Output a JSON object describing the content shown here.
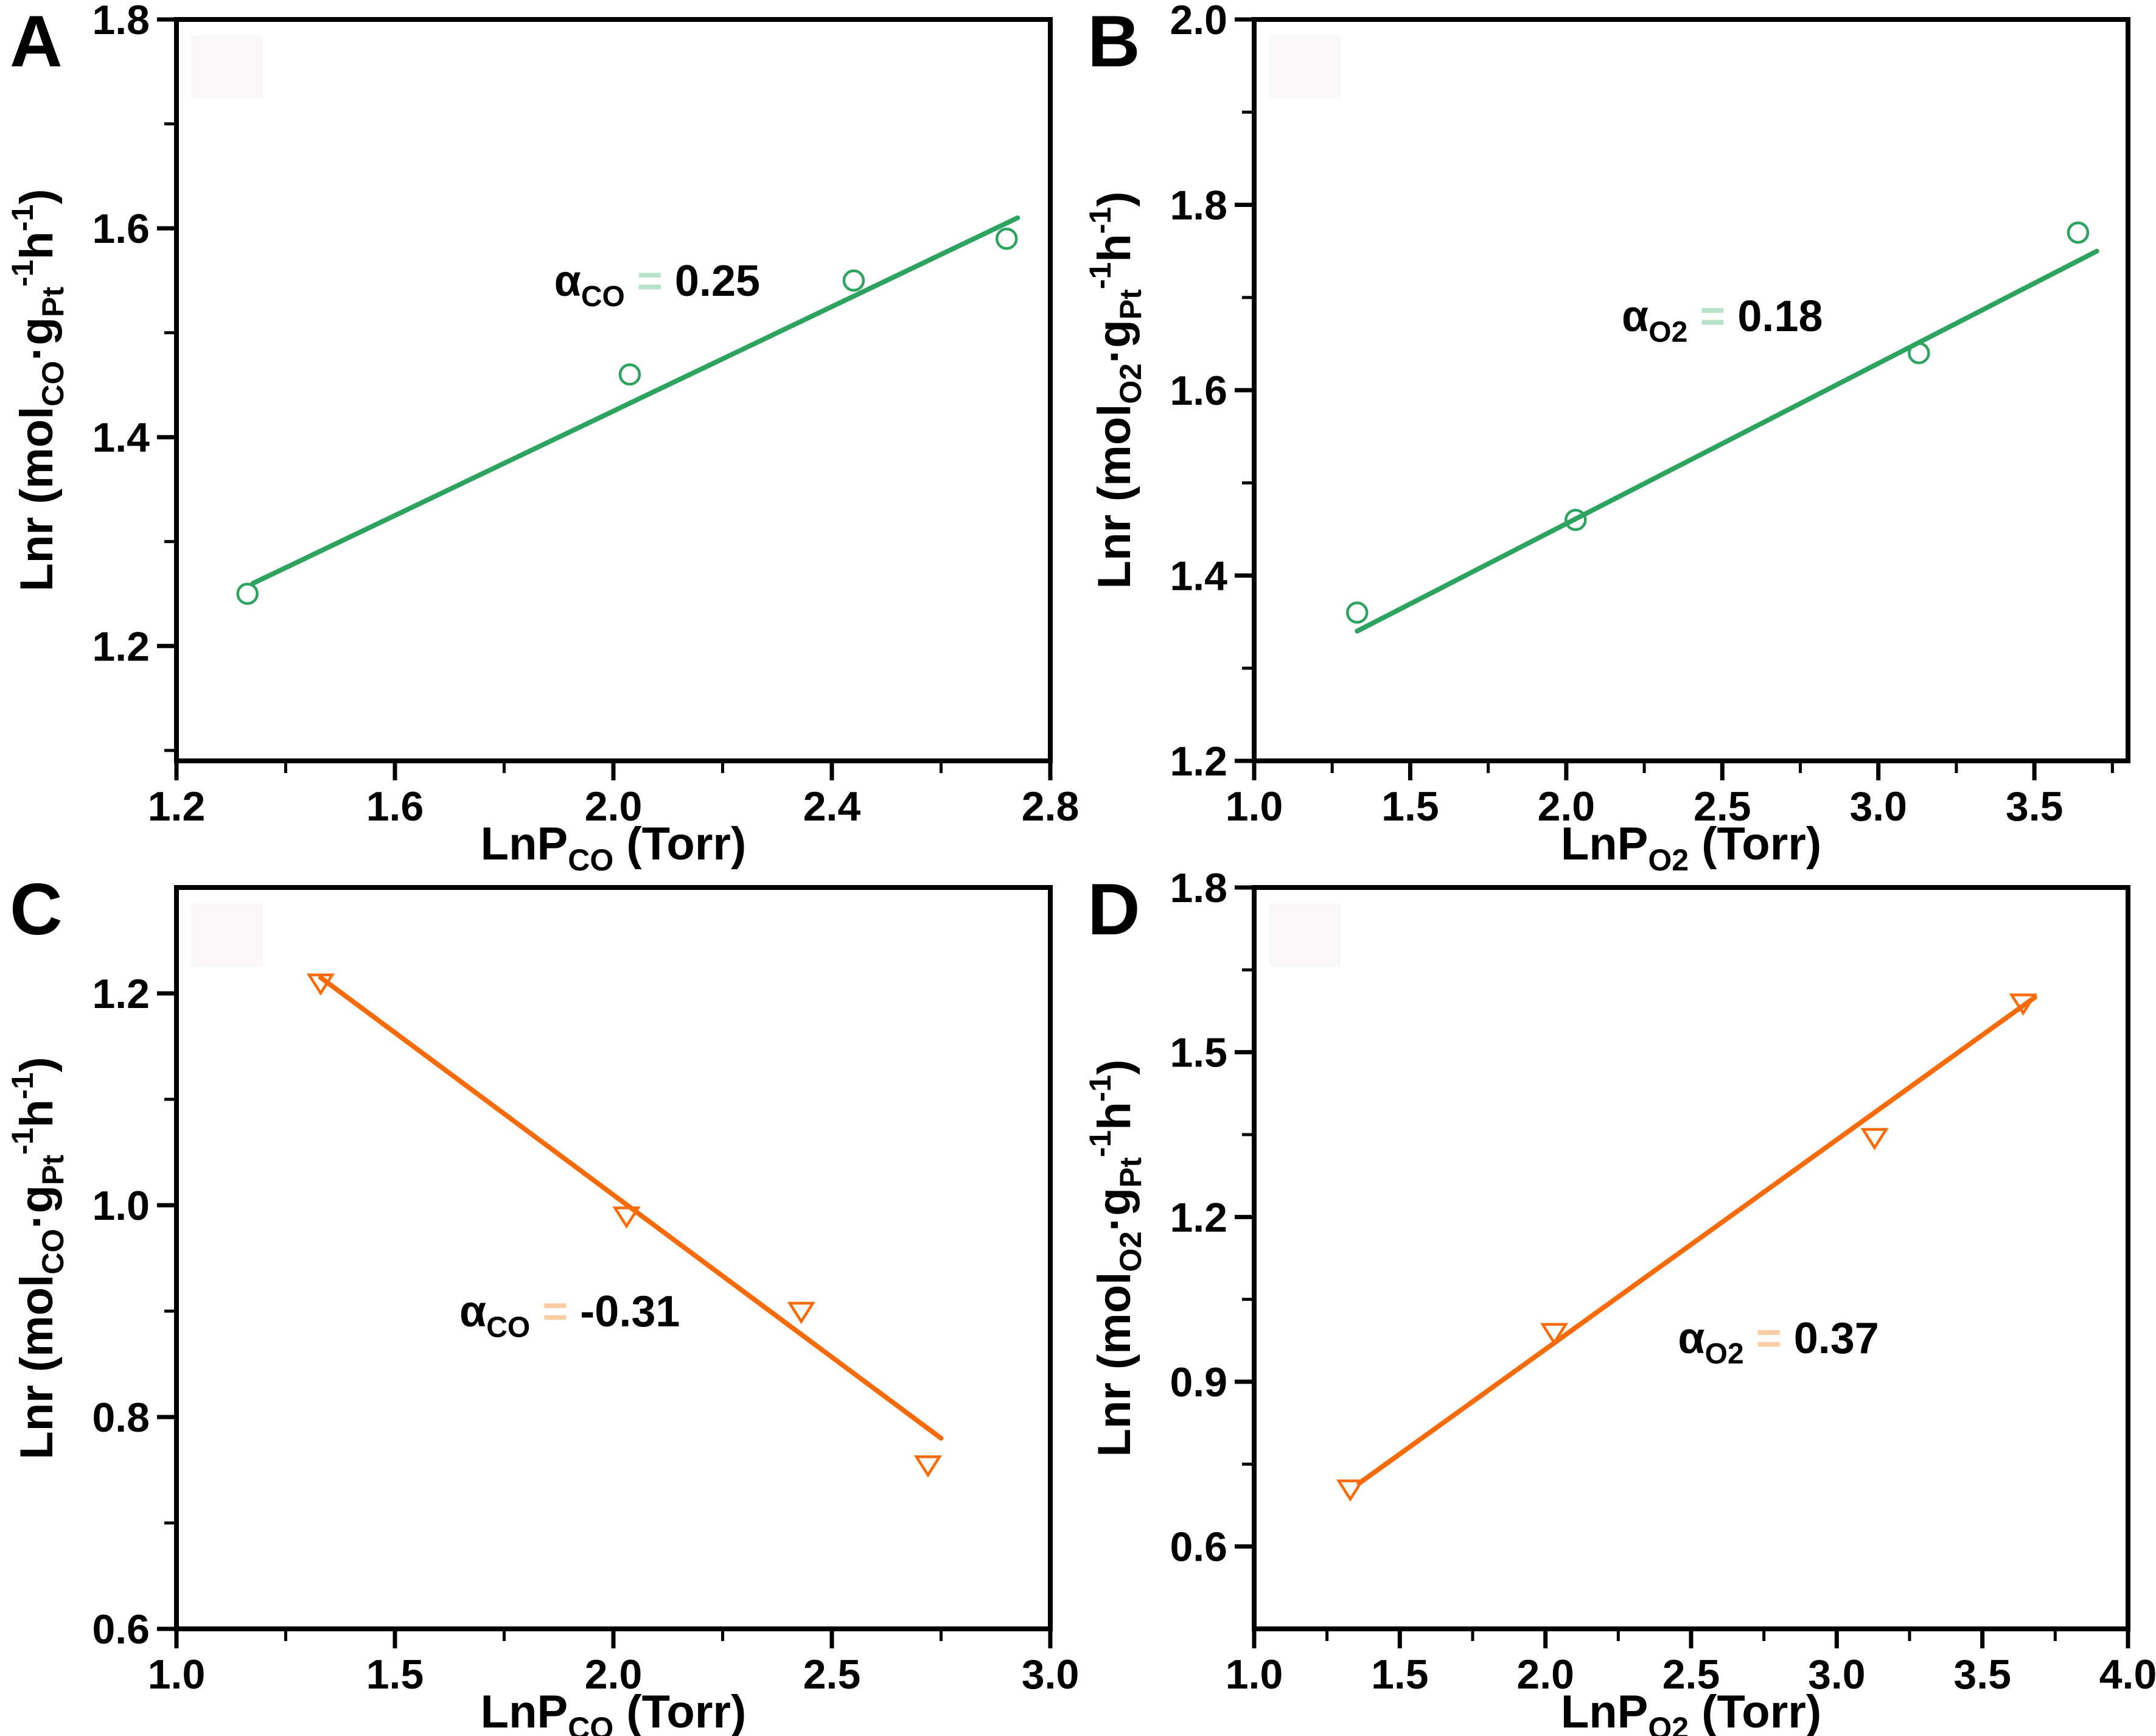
{
  "style": {
    "background": "#ffffff",
    "frame_color": "#000000",
    "watermark_color": "#faf7f8",
    "green": "#2ca35f",
    "orange": "#f96a08"
  },
  "chart_data": [
    {
      "panel": "A",
      "type": "scatter",
      "color": "#2ca35f",
      "pale_color": "#b9e2ca",
      "marker": "circle",
      "xlabel_parts": [
        {
          "t": "LnP"
        },
        {
          "t": "CO",
          "sub": true
        },
        {
          "t": " (Torr)"
        }
      ],
      "ylabel_parts": [
        {
          "t": "Lnr (mol"
        },
        {
          "t": "CO",
          "sub": true
        },
        {
          "t": "·g"
        },
        {
          "t": "Pt",
          "sub": true
        },
        {
          "t": "-1",
          "sup": true
        },
        {
          "t": "h"
        },
        {
          "t": "-1",
          "sup": true
        },
        {
          "t": ")"
        }
      ],
      "xlim": [
        1.2,
        2.8
      ],
      "ylim": [
        1.09,
        1.8
      ],
      "xticks": [
        1.2,
        1.6,
        2.0,
        2.4,
        2.8
      ],
      "xminor": [
        1.4,
        1.8,
        2.2,
        2.6
      ],
      "yticks": [
        1.2,
        1.4,
        1.6,
        1.8
      ],
      "yminor": [
        1.1,
        1.3,
        1.5,
        1.7
      ],
      "points": [
        [
          1.33,
          1.25
        ],
        [
          2.03,
          1.46
        ],
        [
          2.44,
          1.55
        ],
        [
          2.72,
          1.59
        ]
      ],
      "fit_line": {
        "x1": 1.34,
        "y1": 1.26,
        "x2": 2.74,
        "y2": 1.61
      },
      "annotation": {
        "parts": [
          {
            "t": "α"
          },
          {
            "t": "CO",
            "sub": true
          },
          {
            "t": " = ",
            "pale": true
          },
          {
            "t": "0.25"
          }
        ],
        "x": 2.08,
        "y": 1.55
      }
    },
    {
      "panel": "B",
      "type": "scatter",
      "color": "#2ca35f",
      "pale_color": "#b9e2ca",
      "marker": "circle",
      "xlabel_parts": [
        {
          "t": "LnP"
        },
        {
          "t": "O2",
          "sub": true
        },
        {
          "t": " (Torr)"
        }
      ],
      "ylabel_parts": [
        {
          "t": "Lnr (mol"
        },
        {
          "t": "O2",
          "sub": true
        },
        {
          "t": "·g"
        },
        {
          "t": "Pt",
          "sub": true
        },
        {
          "t": "-1",
          "sup": true
        },
        {
          "t": "h"
        },
        {
          "t": "-1",
          "sup": true
        },
        {
          "t": ")"
        }
      ],
      "xlim": [
        1.0,
        3.8
      ],
      "ylim": [
        1.2,
        2.0
      ],
      "xticks": [
        1.0,
        1.5,
        2.0,
        2.5,
        3.0,
        3.5
      ],
      "xminor": [
        1.25,
        1.75,
        2.25,
        2.75,
        3.25,
        3.75
      ],
      "yticks": [
        1.2,
        1.4,
        1.6,
        1.8,
        2.0
      ],
      "yminor": [
        1.3,
        1.5,
        1.7,
        1.9
      ],
      "points": [
        [
          1.33,
          1.36
        ],
        [
          2.03,
          1.46
        ],
        [
          3.13,
          1.64
        ],
        [
          3.64,
          1.77
        ]
      ],
      "fit_line": {
        "x1": 1.33,
        "y1": 1.34,
        "x2": 3.7,
        "y2": 1.75
      },
      "annotation": {
        "parts": [
          {
            "t": "α"
          },
          {
            "t": "O2",
            "sub": true
          },
          {
            "t": " = ",
            "pale": true
          },
          {
            "t": "0.18"
          }
        ],
        "x": 2.5,
        "y": 1.68
      }
    },
    {
      "panel": "C",
      "type": "scatter",
      "color": "#f96a08",
      "pale_color": "#fbcda4",
      "marker": "triangle-down",
      "xlabel_parts": [
        {
          "t": "LnP"
        },
        {
          "t": "CO",
          "sub": true
        },
        {
          "t": " (Torr)"
        }
      ],
      "ylabel_parts": [
        {
          "t": "Lnr (mol"
        },
        {
          "t": "CO",
          "sub": true
        },
        {
          "t": "·g"
        },
        {
          "t": "Pt",
          "sub": true
        },
        {
          "t": "-1",
          "sup": true
        },
        {
          "t": "h"
        },
        {
          "t": "-1",
          "sup": true
        },
        {
          "t": ")"
        }
      ],
      "xlim": [
        1.0,
        3.0
      ],
      "ylim": [
        0.6,
        1.3
      ],
      "xticks": [
        1.0,
        1.5,
        2.0,
        2.5,
        3.0
      ],
      "xminor": [
        1.25,
        1.75,
        2.25,
        2.75
      ],
      "yticks": [
        0.6,
        0.8,
        1.0,
        1.2
      ],
      "yminor": [
        0.7,
        0.9,
        1.1
      ],
      "points": [
        [
          1.33,
          1.21
        ],
        [
          2.03,
          0.99
        ],
        [
          2.43,
          0.9
        ],
        [
          2.72,
          0.755
        ]
      ],
      "fit_line": {
        "x1": 1.33,
        "y1": 1.215,
        "x2": 2.75,
        "y2": 0.78
      },
      "annotation": {
        "parts": [
          {
            "t": "α"
          },
          {
            "t": "CO",
            "sub": true
          },
          {
            "t": " = ",
            "pale": true
          },
          {
            "t": "-0.31"
          }
        ],
        "x": 1.9,
        "y": 0.9
      }
    },
    {
      "panel": "D",
      "type": "scatter",
      "color": "#f96a08",
      "pale_color": "#fbcda4",
      "marker": "triangle-down",
      "xlabel_parts": [
        {
          "t": "LnP"
        },
        {
          "t": "O2",
          "sub": true
        },
        {
          "t": " (Torr)"
        }
      ],
      "ylabel_parts": [
        {
          "t": "Lnr (mol"
        },
        {
          "t": "O2",
          "sub": true
        },
        {
          "t": "·g"
        },
        {
          "t": "Pt",
          "sub": true
        },
        {
          "t": "-1",
          "sup": true
        },
        {
          "t": "h"
        },
        {
          "t": "-1",
          "sup": true
        },
        {
          "t": ")"
        }
      ],
      "xlim": [
        1.0,
        4.0
      ],
      "ylim": [
        0.45,
        1.8
      ],
      "xticks": [
        1.0,
        1.5,
        2.0,
        2.5,
        3.0,
        3.5,
        4.0
      ],
      "xminor": [
        1.25,
        1.75,
        2.25,
        2.75,
        3.25,
        3.75
      ],
      "yticks": [
        0.6,
        0.9,
        1.2,
        1.5,
        1.8
      ],
      "yminor": [
        0.75,
        1.05,
        1.35,
        1.65
      ],
      "points": [
        [
          1.33,
          0.705
        ],
        [
          2.03,
          0.99
        ],
        [
          3.13,
          1.345
        ],
        [
          3.64,
          1.59
        ]
      ],
      "fit_line": {
        "x1": 1.36,
        "y1": 0.715,
        "x2": 3.68,
        "y2": 1.6
      },
      "annotation": {
        "parts": [
          {
            "t": "α"
          },
          {
            "t": "O2",
            "sub": true
          },
          {
            "t": " = ",
            "pale": true
          },
          {
            "t": "0.37"
          }
        ],
        "x": 2.8,
        "y": 0.98
      }
    }
  ]
}
